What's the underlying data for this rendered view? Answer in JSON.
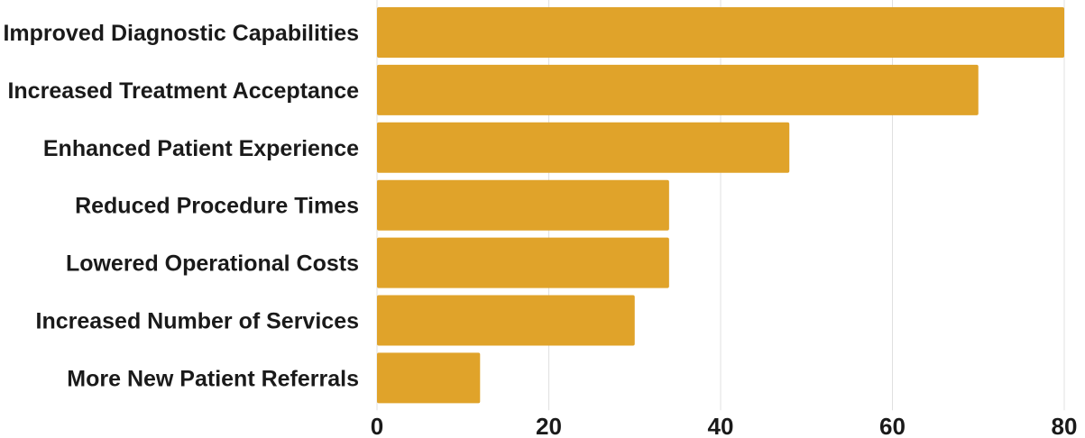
{
  "chart_data": {
    "type": "bar",
    "orientation": "horizontal",
    "categories": [
      "Improved Diagnostic Capabilities",
      "Increased Treatment Acceptance",
      "Enhanced Patient Experience",
      "Reduced Procedure Times",
      "Lowered Operational Costs",
      "Increased Number of Services",
      "More New Patient Referrals"
    ],
    "values": [
      80,
      70,
      48,
      34,
      34,
      30,
      12
    ],
    "xlim": [
      0,
      80
    ],
    "xticks": [
      "0",
      "20",
      "40",
      "60",
      "80"
    ],
    "title": "",
    "xlabel": "",
    "ylabel": "",
    "grid": "vertical",
    "legend": "none",
    "bar_color": "#E0A32A"
  }
}
